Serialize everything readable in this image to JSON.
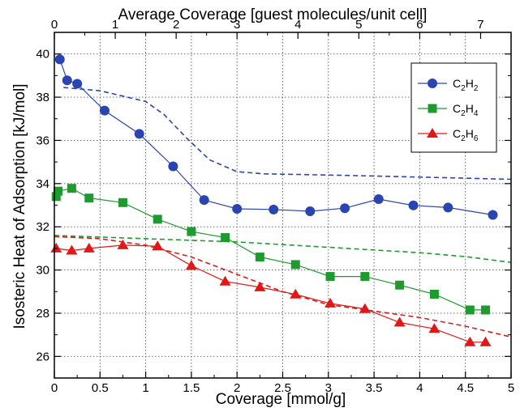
{
  "chart_data": {
    "type": "scatter",
    "xlabel": "Coverage  [mmol/g]",
    "ylabel": "Isosteric Heat of Adsorption  [kJ/mol]",
    "x2label": "Average Coverage  [guest molecules/unit cell]",
    "xlim": [
      0,
      5
    ],
    "ylim": [
      25,
      41
    ],
    "x2lim": [
      0,
      7.5
    ],
    "xticks": [
      "0",
      "0.5",
      "1",
      "1.5",
      "2",
      "2.5",
      "3",
      "3.5",
      "4",
      "4.5",
      "5"
    ],
    "yticks": [
      "26",
      "28",
      "30",
      "32",
      "34",
      "36",
      "38",
      "40"
    ],
    "x2ticks": [
      "0",
      "1",
      "2",
      "3",
      "4",
      "5",
      "6",
      "7"
    ],
    "grid": "dotted",
    "legend_position": "top-right",
    "series": [
      {
        "name": "C2H2",
        "legend_main": "C",
        "legend_sub1": "2",
        "legend_mid": "H",
        "legend_sub2": "2",
        "color": "#2b45b0",
        "marker": "circle",
        "x": [
          0.06,
          0.14,
          0.25,
          0.55,
          0.93,
          1.3,
          1.64,
          2.0,
          2.4,
          2.8,
          3.18,
          3.55,
          3.93,
          4.31,
          4.8
        ],
        "y": [
          39.75,
          38.78,
          38.62,
          37.38,
          36.3,
          34.8,
          33.24,
          32.83,
          32.8,
          32.72,
          32.86,
          33.28,
          32.99,
          32.89,
          32.55
        ]
      },
      {
        "name": "C2H4",
        "legend_main": "C",
        "legend_sub1": "2",
        "legend_mid": "H",
        "legend_sub2": "4",
        "color": "#1f9a2e",
        "marker": "square",
        "x": [
          0.02,
          0.04,
          0.19,
          0.38,
          0.75,
          1.13,
          1.5,
          1.87,
          2.25,
          2.64,
          3.02,
          3.4,
          3.78,
          4.16,
          4.55,
          4.72
        ],
        "y": [
          33.4,
          33.65,
          33.78,
          33.33,
          33.12,
          32.35,
          31.78,
          31.5,
          30.6,
          30.25,
          29.7,
          29.7,
          29.3,
          28.88,
          28.15,
          28.15
        ]
      },
      {
        "name": "C2H6",
        "legend_main": "C",
        "legend_sub1": "2",
        "legend_mid": "H",
        "legend_sub2": "6",
        "color": "#e01818",
        "marker": "triangle",
        "x": [
          0.02,
          0.19,
          0.38,
          0.75,
          1.13,
          1.5,
          1.87,
          2.25,
          2.64,
          3.02,
          3.4,
          3.78,
          4.16,
          4.55,
          4.72
        ],
        "y": [
          31.0,
          30.9,
          31.0,
          31.15,
          31.1,
          30.2,
          29.47,
          29.2,
          28.87,
          28.45,
          28.2,
          27.57,
          27.28,
          26.66,
          26.66
        ]
      }
    ],
    "dashed_curves": [
      {
        "color": "#2b45b0",
        "x": [
          0.1,
          0.5,
          1.0,
          1.2,
          1.45,
          1.7,
          2.0,
          2.3,
          2.7,
          3.2,
          4.0,
          5.0
        ],
        "y": [
          38.45,
          38.3,
          37.8,
          37.2,
          36.1,
          35.1,
          34.55,
          34.45,
          34.42,
          34.38,
          34.3,
          34.2
        ]
      },
      {
        "color": "#1f9a2e",
        "x": [
          0.0,
          1.0,
          2.0,
          3.0,
          4.0,
          4.5,
          5.0
        ],
        "y": [
          31.6,
          31.45,
          31.3,
          31.05,
          30.8,
          30.62,
          30.35
        ]
      },
      {
        "color": "#e01818",
        "x": [
          0.0,
          0.5,
          1.0,
          1.5,
          2.0,
          2.5,
          3.0,
          3.5,
          4.0,
          4.5,
          5.0
        ],
        "y": [
          31.55,
          31.45,
          31.15,
          30.6,
          29.8,
          29.0,
          28.4,
          28.1,
          27.8,
          27.4,
          26.9
        ]
      }
    ]
  }
}
